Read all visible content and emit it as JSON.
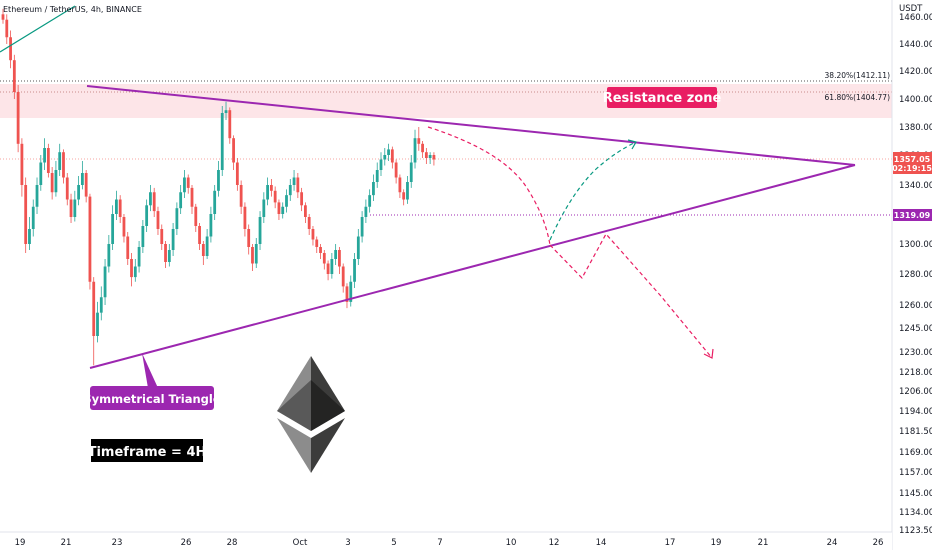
{
  "header": {
    "symbol": "Ethereum / TetherUS, 4h, BINANCE"
  },
  "price_axis": {
    "currency": "USDT",
    "ticks": [
      "1460.00",
      "1440.00",
      "1420.00",
      "1400.00",
      "1380.00",
      "1360.00",
      "1340.00",
      "1320.00",
      "1300.00",
      "1280.00",
      "1260.00",
      "1245.00",
      "1230.00",
      "1218.00",
      "1206.00",
      "1194.00",
      "1181.50",
      "1169.00",
      "1157.00",
      "1145.00",
      "1134.00",
      "1123.50"
    ]
  },
  "time_axis": {
    "ticks": [
      "19",
      "21",
      "23",
      "26",
      "28",
      "Oct",
      "3",
      "5",
      "7",
      "10",
      "12",
      "14",
      "17",
      "19",
      "21",
      "24",
      "26"
    ]
  },
  "badges": {
    "last_price": "1357.05",
    "countdown": "02:19:15",
    "support_price": "1319.09"
  },
  "fib_levels": {
    "fib_382": "38.20%(1412.11)",
    "fib_618": "61.80%(1404.77)"
  },
  "annotations": {
    "resistance": "Resistance zone",
    "pattern": "Symmetrical Triangle",
    "timeframe": "Timeframe = 4H"
  },
  "colors": {
    "up": "#26a69a",
    "down": "#ef5350",
    "triangle": "#9c27b0",
    "resistance_fill": "#fde0e4",
    "resistance_label": "#e91e63",
    "projection_down": "#e91e63",
    "projection_up": "#089981"
  },
  "chart_data": {
    "type": "candlestick",
    "symbol": "ETHUSDT",
    "interval": "4h",
    "price_range": [
      1123.5,
      1466
    ],
    "x": [
      0,
      1,
      2,
      3,
      4,
      5,
      6,
      7,
      8,
      9,
      10,
      11,
      12,
      13,
      14,
      15,
      16,
      17,
      18,
      19,
      20,
      21,
      22,
      23,
      24,
      25,
      26,
      27,
      28,
      29,
      30,
      31,
      32,
      33,
      34,
      35,
      36,
      37,
      38,
      39,
      40,
      41,
      42,
      43,
      44,
      45,
      46,
      47,
      48,
      49,
      50,
      51,
      52,
      53,
      54,
      55,
      56,
      57,
      58,
      59,
      60,
      61,
      62,
      63,
      64,
      65,
      66,
      67,
      68,
      69,
      70,
      71,
      72,
      73,
      74,
      75,
      76,
      77,
      78,
      79,
      80,
      81,
      82,
      83,
      84,
      85,
      86,
      87,
      88,
      89,
      90,
      91,
      92,
      93,
      94,
      95,
      96,
      97,
      98,
      99,
      100,
      101,
      102,
      103,
      104,
      105,
      106,
      107,
      108,
      109,
      110,
      111,
      112,
      113,
      114
    ],
    "open": [
      1462,
      1458,
      1445,
      1428,
      1405,
      1368,
      1340,
      1300,
      1310,
      1325,
      1340,
      1355,
      1365,
      1348,
      1335,
      1350,
      1362,
      1345,
      1330,
      1318,
      1330,
      1340,
      1348,
      1332,
      1275,
      1240,
      1255,
      1265,
      1285,
      1300,
      1320,
      1330,
      1318,
      1305,
      1290,
      1278,
      1285,
      1298,
      1312,
      1326,
      1335,
      1322,
      1310,
      1300,
      1288,
      1296,
      1310,
      1324,
      1335,
      1345,
      1338,
      1325,
      1312,
      1300,
      1292,
      1305,
      1320,
      1336,
      1350,
      1390,
      1392,
      1372,
      1355,
      1340,
      1325,
      1310,
      1298,
      1287,
      1300,
      1318,
      1330,
      1340,
      1336,
      1328,
      1320,
      1325,
      1333,
      1340,
      1345,
      1335,
      1326,
      1318,
      1310,
      1303,
      1298,
      1294,
      1287,
      1280,
      1290,
      1296,
      1285,
      1272,
      1262,
      1275,
      1290,
      1305,
      1318,
      1325,
      1333,
      1342,
      1350,
      1357,
      1360,
      1364,
      1355,
      1345,
      1335,
      1330,
      1342,
      1355,
      1372,
      1368,
      1362,
      1358,
      1360
    ],
    "close": [
      1458,
      1445,
      1428,
      1405,
      1368,
      1340,
      1300,
      1310,
      1325,
      1340,
      1355,
      1365,
      1348,
      1335,
      1350,
      1362,
      1345,
      1330,
      1318,
      1330,
      1340,
      1348,
      1332,
      1275,
      1240,
      1255,
      1265,
      1285,
      1300,
      1320,
      1330,
      1318,
      1305,
      1290,
      1278,
      1285,
      1298,
      1312,
      1326,
      1335,
      1322,
      1310,
      1300,
      1288,
      1296,
      1310,
      1324,
      1335,
      1345,
      1338,
      1325,
      1312,
      1300,
      1292,
      1305,
      1320,
      1336,
      1350,
      1390,
      1392,
      1372,
      1355,
      1340,
      1325,
      1310,
      1298,
      1287,
      1300,
      1318,
      1330,
      1340,
      1336,
      1328,
      1320,
      1325,
      1333,
      1340,
      1345,
      1335,
      1326,
      1318,
      1310,
      1303,
      1298,
      1294,
      1287,
      1280,
      1290,
      1296,
      1285,
      1272,
      1262,
      1275,
      1290,
      1305,
      1318,
      1325,
      1333,
      1342,
      1350,
      1357,
      1360,
      1364,
      1355,
      1345,
      1335,
      1330,
      1342,
      1355,
      1372,
      1368,
      1362,
      1358,
      1360,
      1357
    ],
    "high": [
      1466,
      1462,
      1450,
      1432,
      1410,
      1372,
      1345,
      1318,
      1330,
      1345,
      1360,
      1372,
      1368,
      1352,
      1356,
      1368,
      1364,
      1348,
      1334,
      1336,
      1346,
      1356,
      1350,
      1334,
      1278,
      1262,
      1272,
      1290,
      1306,
      1326,
      1336,
      1333,
      1320,
      1308,
      1294,
      1290,
      1302,
      1316,
      1330,
      1340,
      1338,
      1325,
      1313,
      1302,
      1300,
      1314,
      1328,
      1340,
      1350,
      1347,
      1340,
      1327,
      1314,
      1302,
      1310,
      1325,
      1340,
      1356,
      1395,
      1398,
      1394,
      1374,
      1358,
      1343,
      1328,
      1313,
      1300,
      1304,
      1322,
      1335,
      1345,
      1344,
      1339,
      1330,
      1328,
      1337,
      1344,
      1350,
      1348,
      1338,
      1328,
      1320,
      1312,
      1305,
      1300,
      1296,
      1289,
      1294,
      1300,
      1298,
      1287,
      1274,
      1279,
      1294,
      1310,
      1322,
      1330,
      1337,
      1347,
      1355,
      1362,
      1365,
      1368,
      1366,
      1357,
      1347,
      1337,
      1346,
      1360,
      1378,
      1380,
      1370,
      1365,
      1362,
      1362
    ],
    "low": [
      1455,
      1440,
      1422,
      1400,
      1362,
      1332,
      1294,
      1296,
      1305,
      1320,
      1336,
      1350,
      1345,
      1330,
      1332,
      1346,
      1341,
      1326,
      1314,
      1315,
      1326,
      1337,
      1328,
      1270,
      1222,
      1236,
      1250,
      1260,
      1281,
      1296,
      1316,
      1314,
      1301,
      1286,
      1272,
      1275,
      1281,
      1294,
      1308,
      1322,
      1318,
      1306,
      1296,
      1284,
      1285,
      1292,
      1306,
      1320,
      1331,
      1334,
      1320,
      1308,
      1296,
      1286,
      1290,
      1301,
      1316,
      1332,
      1346,
      1385,
      1368,
      1350,
      1336,
      1320,
      1305,
      1293,
      1282,
      1284,
      1296,
      1314,
      1326,
      1332,
      1324,
      1316,
      1317,
      1321,
      1329,
      1336,
      1331,
      1322,
      1314,
      1306,
      1299,
      1294,
      1290,
      1283,
      1276,
      1277,
      1286,
      1280,
      1268,
      1258,
      1259,
      1271,
      1286,
      1301,
      1314,
      1321,
      1329,
      1338,
      1346,
      1353,
      1356,
      1351,
      1341,
      1331,
      1326,
      1327,
      1338,
      1351,
      1363,
      1358,
      1354,
      1354,
      1353
    ]
  }
}
